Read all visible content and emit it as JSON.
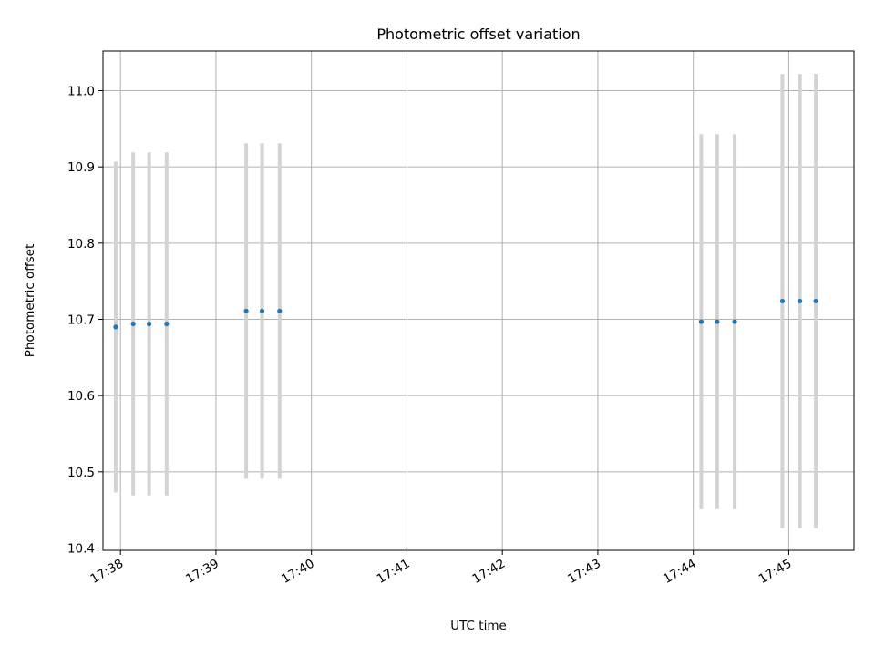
{
  "chart_data": {
    "type": "scatter",
    "title": "Photometric offset variation",
    "xlabel": "UTC time",
    "ylabel": "Photometric offset",
    "xlim": [
      "17:37:49",
      "17:45:41"
    ],
    "ylim": [
      10.397,
      11.052
    ],
    "x_ticks": [
      "17:38",
      "17:39",
      "17:40",
      "17:41",
      "17:42",
      "17:43",
      "17:44",
      "17:45"
    ],
    "y_ticks": [
      "10.4",
      "10.5",
      "10.6",
      "10.7",
      "10.8",
      "10.9",
      "11.0"
    ],
    "grid": true,
    "series": [
      {
        "marker_color": "#1f77b4",
        "errorbar_color": "#d3d3d3",
        "points": [
          {
            "x": "17:37:57",
            "y": 10.69,
            "yerr": 0.217
          },
          {
            "x": "17:38:08",
            "y": 10.694,
            "yerr": 0.225
          },
          {
            "x": "17:38:18",
            "y": 10.694,
            "yerr": 0.225
          },
          {
            "x": "17:38:29",
            "y": 10.694,
            "yerr": 0.225
          },
          {
            "x": "17:39:19",
            "y": 10.711,
            "yerr": 0.22
          },
          {
            "x": "17:39:29",
            "y": 10.711,
            "yerr": 0.22
          },
          {
            "x": "17:39:40",
            "y": 10.711,
            "yerr": 0.22
          },
          {
            "x": "17:44:05",
            "y": 10.697,
            "yerr": 0.246
          },
          {
            "x": "17:44:15",
            "y": 10.697,
            "yerr": 0.246
          },
          {
            "x": "17:44:26",
            "y": 10.697,
            "yerr": 0.246
          },
          {
            "x": "17:44:56",
            "y": 10.724,
            "yerr": 0.298
          },
          {
            "x": "17:45:07",
            "y": 10.724,
            "yerr": 0.298
          },
          {
            "x": "17:45:17",
            "y": 10.724,
            "yerr": 0.298
          }
        ]
      }
    ]
  }
}
